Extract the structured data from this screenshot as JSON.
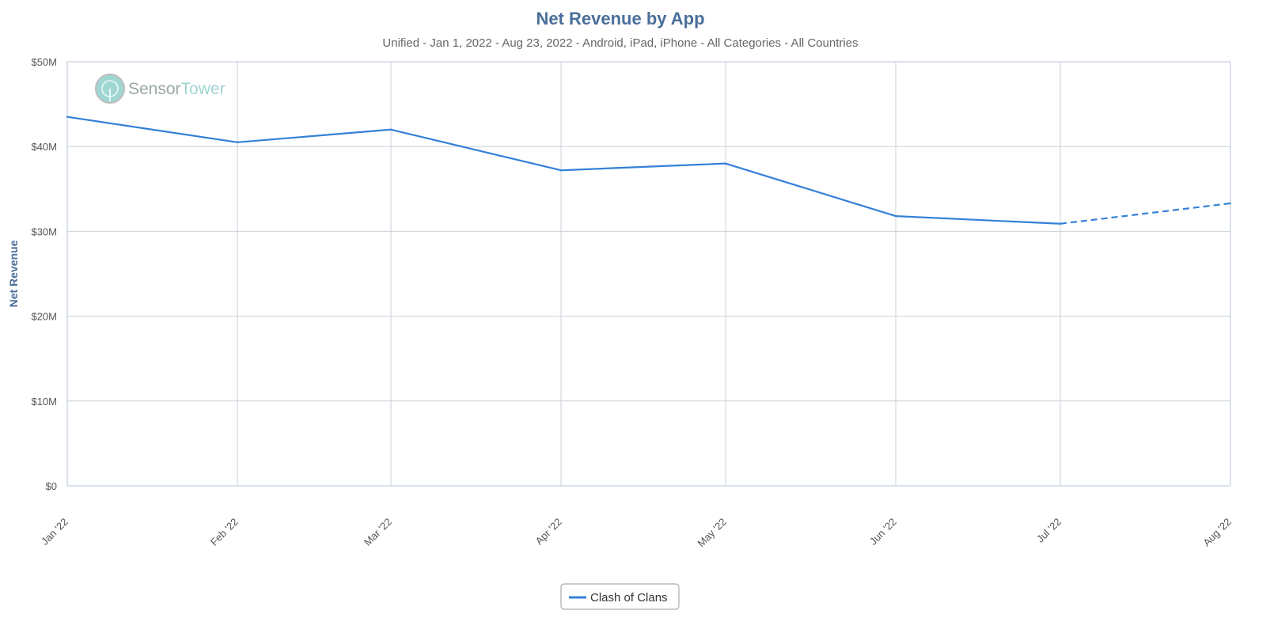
{
  "watermark": {
    "sensor": "Sensor",
    "tower": "Tower"
  },
  "colors": {
    "series": "#3580d8",
    "title": "#4a6f9a",
    "grid": "#c8d0d8",
    "axis": "#b7c7d9",
    "watermark_circle": "#9fd6d2"
  },
  "chart_data": {
    "type": "line",
    "title": "Net Revenue by App",
    "subtitle": "Unified - Jan 1, 2022 - Aug 23, 2022 - Android, iPad, iPhone - All Categories - All Countries",
    "xlabel": "",
    "ylabel": "Net Revenue",
    "categories": [
      "Jan '22",
      "Feb '22",
      "Mar '22",
      "Apr '22",
      "May '22",
      "Jun '22",
      "Jul '22",
      "Aug '22"
    ],
    "x_dates": [
      "2022-01-01",
      "2022-02-01",
      "2022-03-01",
      "2022-04-01",
      "2022-05-01",
      "2022-06-01",
      "2022-07-01",
      "2022-08-01"
    ],
    "ylim": [
      0,
      50000000
    ],
    "yticks": [
      0,
      10000000,
      20000000,
      30000000,
      40000000,
      50000000
    ],
    "ytick_labels": [
      "$0",
      "$10M",
      "$20M",
      "$30M",
      "$40M",
      "$50M"
    ],
    "grid": true,
    "legend_position": "bottom-center",
    "series": [
      {
        "name": "Clash of Clans",
        "values": [
          43500000,
          40500000,
          42000000,
          37200000,
          38000000,
          31800000,
          30900000,
          33300000
        ],
        "dashed_from_index": 6
      }
    ]
  }
}
